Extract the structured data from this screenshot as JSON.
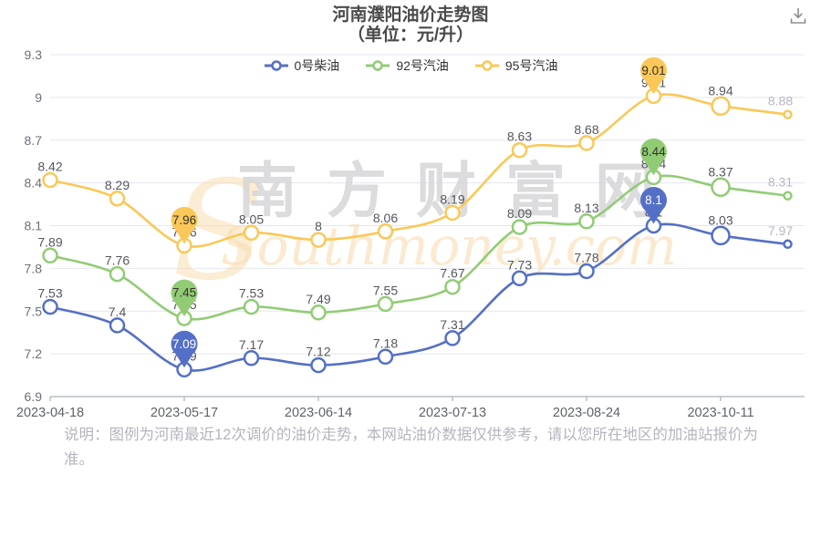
{
  "header": {
    "title": "河南濮阳油价走势图",
    "subtitle": "（单位：元/升）"
  },
  "toolbar": {
    "download_icon": "download-icon"
  },
  "watermark": {
    "cn": "南方财富网",
    "en": "Southmoney.com",
    "swoosh": "S"
  },
  "note": {
    "lines": [
      "说明：图例为河南最近12次调价的油价走势，本网站油价数据仅供参考，请以您所在地区的加油站报价为",
      "准。"
    ]
  },
  "chart_data": {
    "type": "line",
    "title": "河南濮阳油价走势图",
    "subtitle": "（单位：元/升）",
    "unit": "元/升",
    "legend_position": "top",
    "grid": true,
    "smooth": true,
    "ylim": [
      6.9,
      9.3
    ],
    "y_ticks": [
      9.3,
      9,
      8.7,
      8.4,
      8.1,
      7.8,
      7.5,
      7.2,
      6.9
    ],
    "num_points": 12,
    "x_labels": [
      "2023-04-18",
      "2023-05-17",
      "2023-06-14",
      "2023-07-13",
      "2023-08-24",
      "2023-10-11"
    ],
    "x_label_indices": [
      0,
      2,
      4,
      6,
      8,
      10
    ],
    "label_color": "#54575e",
    "muted_label_color": "#b4b7bf",
    "grid_color": "#e4e7ee",
    "axis_color": "#9aa0a8",
    "axis_text_color": "#6e7079",
    "series": [
      {
        "name": "0号柴油",
        "color": "#5470C6",
        "pin_text_color": "#ffffff",
        "values": [
          7.53,
          7.4,
          7.09,
          7.17,
          7.12,
          7.18,
          7.31,
          7.73,
          7.78,
          8.1,
          8.03,
          7.97
        ],
        "min_index": 2,
        "max_index": 9,
        "min_value": 7.09,
        "max_value": 8.1
      },
      {
        "name": "92号汽油",
        "color": "#91CC75",
        "pin_text_color": "#333333",
        "values": [
          7.89,
          7.76,
          7.45,
          7.53,
          7.49,
          7.55,
          7.67,
          8.09,
          8.13,
          8.44,
          8.37,
          8.31
        ],
        "min_index": 2,
        "max_index": 9,
        "min_value": 7.45,
        "max_value": 8.44
      },
      {
        "name": "95号汽油",
        "color": "#FAC858",
        "pin_text_color": "#333333",
        "values": [
          8.42,
          8.29,
          7.96,
          8.05,
          8,
          8.06,
          8.19,
          8.63,
          8.68,
          9.01,
          8.94,
          8.88
        ],
        "min_index": 2,
        "max_index": 9,
        "min_value": 7.96,
        "max_value": 9.01
      }
    ]
  }
}
